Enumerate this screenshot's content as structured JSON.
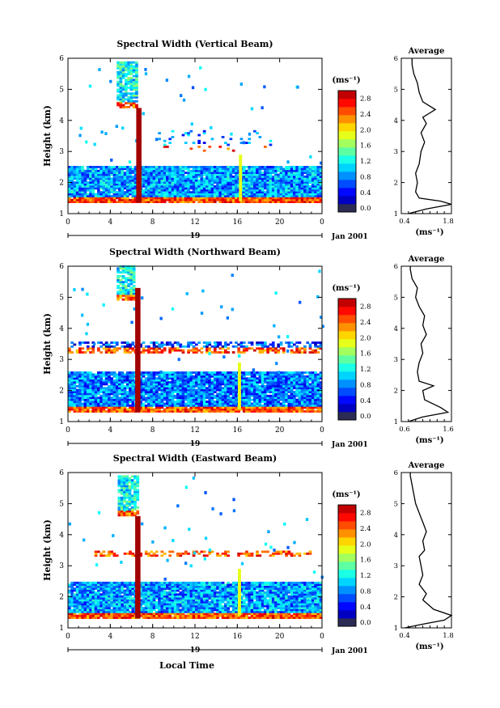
{
  "figure": {
    "xlabel_bottom": "Local Time",
    "date_label": "Jan 2001",
    "day_label": "19"
  },
  "chart_data": [
    {
      "type": "heatmap",
      "title": "Spectral Width (Vertical Beam)",
      "xlabel": "",
      "ylabel": "Height (km)",
      "x_ticks": [
        "0",
        "4",
        "8",
        "12",
        "16",
        "20",
        "0"
      ],
      "y_ticks": [
        "1",
        "2",
        "3",
        "4",
        "5",
        "6"
      ],
      "xlim": [
        0,
        24
      ],
      "ylim": [
        1,
        6
      ],
      "colorbar": {
        "unit": "(ms⁻¹)",
        "ticks": [
          "0.0",
          "0.4",
          "0.8",
          "1.2",
          "1.6",
          "2.0",
          "2.4",
          "2.8"
        ],
        "range": [
          0,
          3.0
        ]
      },
      "echo_layers": [
        {
          "y_from": 1.35,
          "y_to": 2.55,
          "x_from": 0,
          "x_to": 24,
          "density": 0.97,
          "base": 0.8
        },
        {
          "y_from": 3.0,
          "y_to": 3.7,
          "x_from": 8.5,
          "x_to": 20,
          "density": 0.1,
          "base": 0.7
        },
        {
          "y_from": 4.4,
          "y_to": 5.9,
          "x_from": 4.6,
          "x_to": 6.6,
          "density": 0.85,
          "base": 1.1
        }
      ],
      "strong_column": {
        "x": 6.7,
        "y_from": 1.35,
        "y_to": 4.4,
        "value": 2.9
      },
      "secondary_column": {
        "x": 16.3,
        "y_from": 1.4,
        "y_to": 2.9,
        "value": 1.8
      },
      "average_profile": {
        "title": "Average",
        "xlabel": "(ms⁻¹)",
        "x_ticks": [
          "0.4",
          "1.8"
        ],
        "xlim": [
          0.4,
          1.8
        ],
        "y_ticks": [
          "1",
          "2",
          "3",
          "4",
          "5",
          "6"
        ],
        "ylim": [
          1,
          6
        ],
        "height": [
          1.0,
          1.15,
          1.3,
          1.4,
          1.5,
          1.7,
          2.0,
          2.3,
          2.6,
          3.0,
          3.3,
          3.6,
          3.9,
          4.1,
          4.35,
          4.6,
          4.9,
          5.2,
          5.5,
          5.8,
          6.0
        ],
        "value": [
          0.6,
          1.1,
          1.8,
          1.5,
          0.9,
          0.8,
          0.85,
          0.8,
          0.9,
          0.95,
          1.05,
          0.95,
          1.1,
          1.0,
          1.35,
          1.0,
          0.9,
          0.85,
          0.75,
          0.7,
          0.7
        ]
      }
    },
    {
      "type": "heatmap",
      "title": "Spectral Width (Northward Beam)",
      "xlabel": "",
      "ylabel": "Height (km)",
      "x_ticks": [
        "0",
        "4",
        "8",
        "12",
        "16",
        "20",
        "0"
      ],
      "y_ticks": [
        "1",
        "2",
        "3",
        "4",
        "5",
        "6"
      ],
      "xlim": [
        0,
        24
      ],
      "ylim": [
        1,
        6
      ],
      "colorbar": {
        "unit": "(ms⁻¹)",
        "ticks": [
          "0.0",
          "0.4",
          "0.8",
          "1.2",
          "1.6",
          "2.0",
          "2.4",
          "2.8"
        ],
        "range": [
          0,
          3.0
        ]
      },
      "echo_layers": [
        {
          "y_from": 1.3,
          "y_to": 2.6,
          "x_from": 0,
          "x_to": 24,
          "density": 0.96,
          "base": 0.7
        },
        {
          "y_from": 3.2,
          "y_to": 3.55,
          "x_from": 0,
          "x_to": 24,
          "density": 0.6,
          "base": 0.5
        },
        {
          "y_from": 4.9,
          "y_to": 6.0,
          "x_from": 4.6,
          "x_to": 6.4,
          "density": 0.85,
          "base": 1.1
        }
      ],
      "strong_column": {
        "x": 6.6,
        "y_from": 1.3,
        "y_to": 5.3,
        "value": 2.9
      },
      "secondary_column": {
        "x": 16.2,
        "y_from": 1.4,
        "y_to": 2.9,
        "value": 1.8
      },
      "average_profile": {
        "title": "Average",
        "xlabel": "(ms⁻¹)",
        "x_ticks": [
          "0.6",
          "1.6"
        ],
        "xlim": [
          0.4,
          1.8
        ],
        "y_ticks": [
          "1",
          "2",
          "3",
          "4",
          "5",
          "6"
        ],
        "ylim": [
          1,
          6
        ],
        "height": [
          1.0,
          1.15,
          1.3,
          1.45,
          1.7,
          2.0,
          2.15,
          2.3,
          2.6,
          2.9,
          3.2,
          3.5,
          3.8,
          4.1,
          4.4,
          4.7,
          5.0,
          5.3,
          5.6,
          5.9,
          6.0
        ],
        "value": [
          0.6,
          1.0,
          1.7,
          1.5,
          1.05,
          1.0,
          1.3,
          0.9,
          0.85,
          0.9,
          1.0,
          0.95,
          1.1,
          1.0,
          1.05,
          0.9,
          0.8,
          0.85,
          0.7,
          0.65,
          0.65
        ]
      }
    },
    {
      "type": "heatmap",
      "title": "Spectral Width (Eastward Beam)",
      "xlabel": "Local Time",
      "ylabel": "Height (km)",
      "x_ticks": [
        "0",
        "4",
        "8",
        "12",
        "16",
        "20",
        "0"
      ],
      "y_ticks": [
        "1",
        "2",
        "3",
        "4",
        "5",
        "6"
      ],
      "xlim": [
        0,
        24
      ],
      "ylim": [
        1,
        6
      ],
      "colorbar": {
        "unit": "(ms⁻¹)",
        "ticks": [
          "0.0",
          "0.4",
          "0.8",
          "1.2",
          "1.6",
          "2.0",
          "2.4",
          "2.8"
        ],
        "range": [
          0,
          3.0
        ]
      },
      "echo_layers": [
        {
          "y_from": 1.3,
          "y_to": 2.5,
          "x_from": 0,
          "x_to": 24,
          "density": 0.97,
          "base": 0.8
        },
        {
          "y_from": 3.3,
          "y_to": 3.5,
          "x_from": 2.5,
          "x_to": 23,
          "density": 0.45,
          "base": 0.7
        },
        {
          "y_from": 4.6,
          "y_to": 5.9,
          "x_from": 4.7,
          "x_to": 6.6,
          "density": 0.85,
          "base": 1.1
        }
      ],
      "strong_column": {
        "x": 6.6,
        "y_from": 1.3,
        "y_to": 4.6,
        "value": 2.9
      },
      "secondary_column": {
        "x": 16.2,
        "y_from": 1.4,
        "y_to": 2.9,
        "value": 1.8
      },
      "average_profile": {
        "title": "Average",
        "xlabel": "(ms⁻¹)",
        "x_ticks": [
          "0.4",
          "1.8"
        ],
        "xlim": [
          0.4,
          1.8
        ],
        "y_ticks": [
          "1",
          "2",
          "3",
          "4",
          "5",
          "6"
        ],
        "ylim": [
          1,
          6
        ],
        "height": [
          1.0,
          1.1,
          1.25,
          1.4,
          1.6,
          1.9,
          2.1,
          2.4,
          2.7,
          3.0,
          3.3,
          3.5,
          3.8,
          4.1,
          4.4,
          4.7,
          5.0,
          5.3,
          5.6,
          5.9,
          6.0
        ],
        "value": [
          0.5,
          0.9,
          1.6,
          1.8,
          1.3,
          1.0,
          1.1,
          0.9,
          1.0,
          0.95,
          0.9,
          1.05,
          1.0,
          1.1,
          1.0,
          0.9,
          0.8,
          0.75,
          0.7,
          0.65,
          0.65
        ]
      }
    }
  ]
}
